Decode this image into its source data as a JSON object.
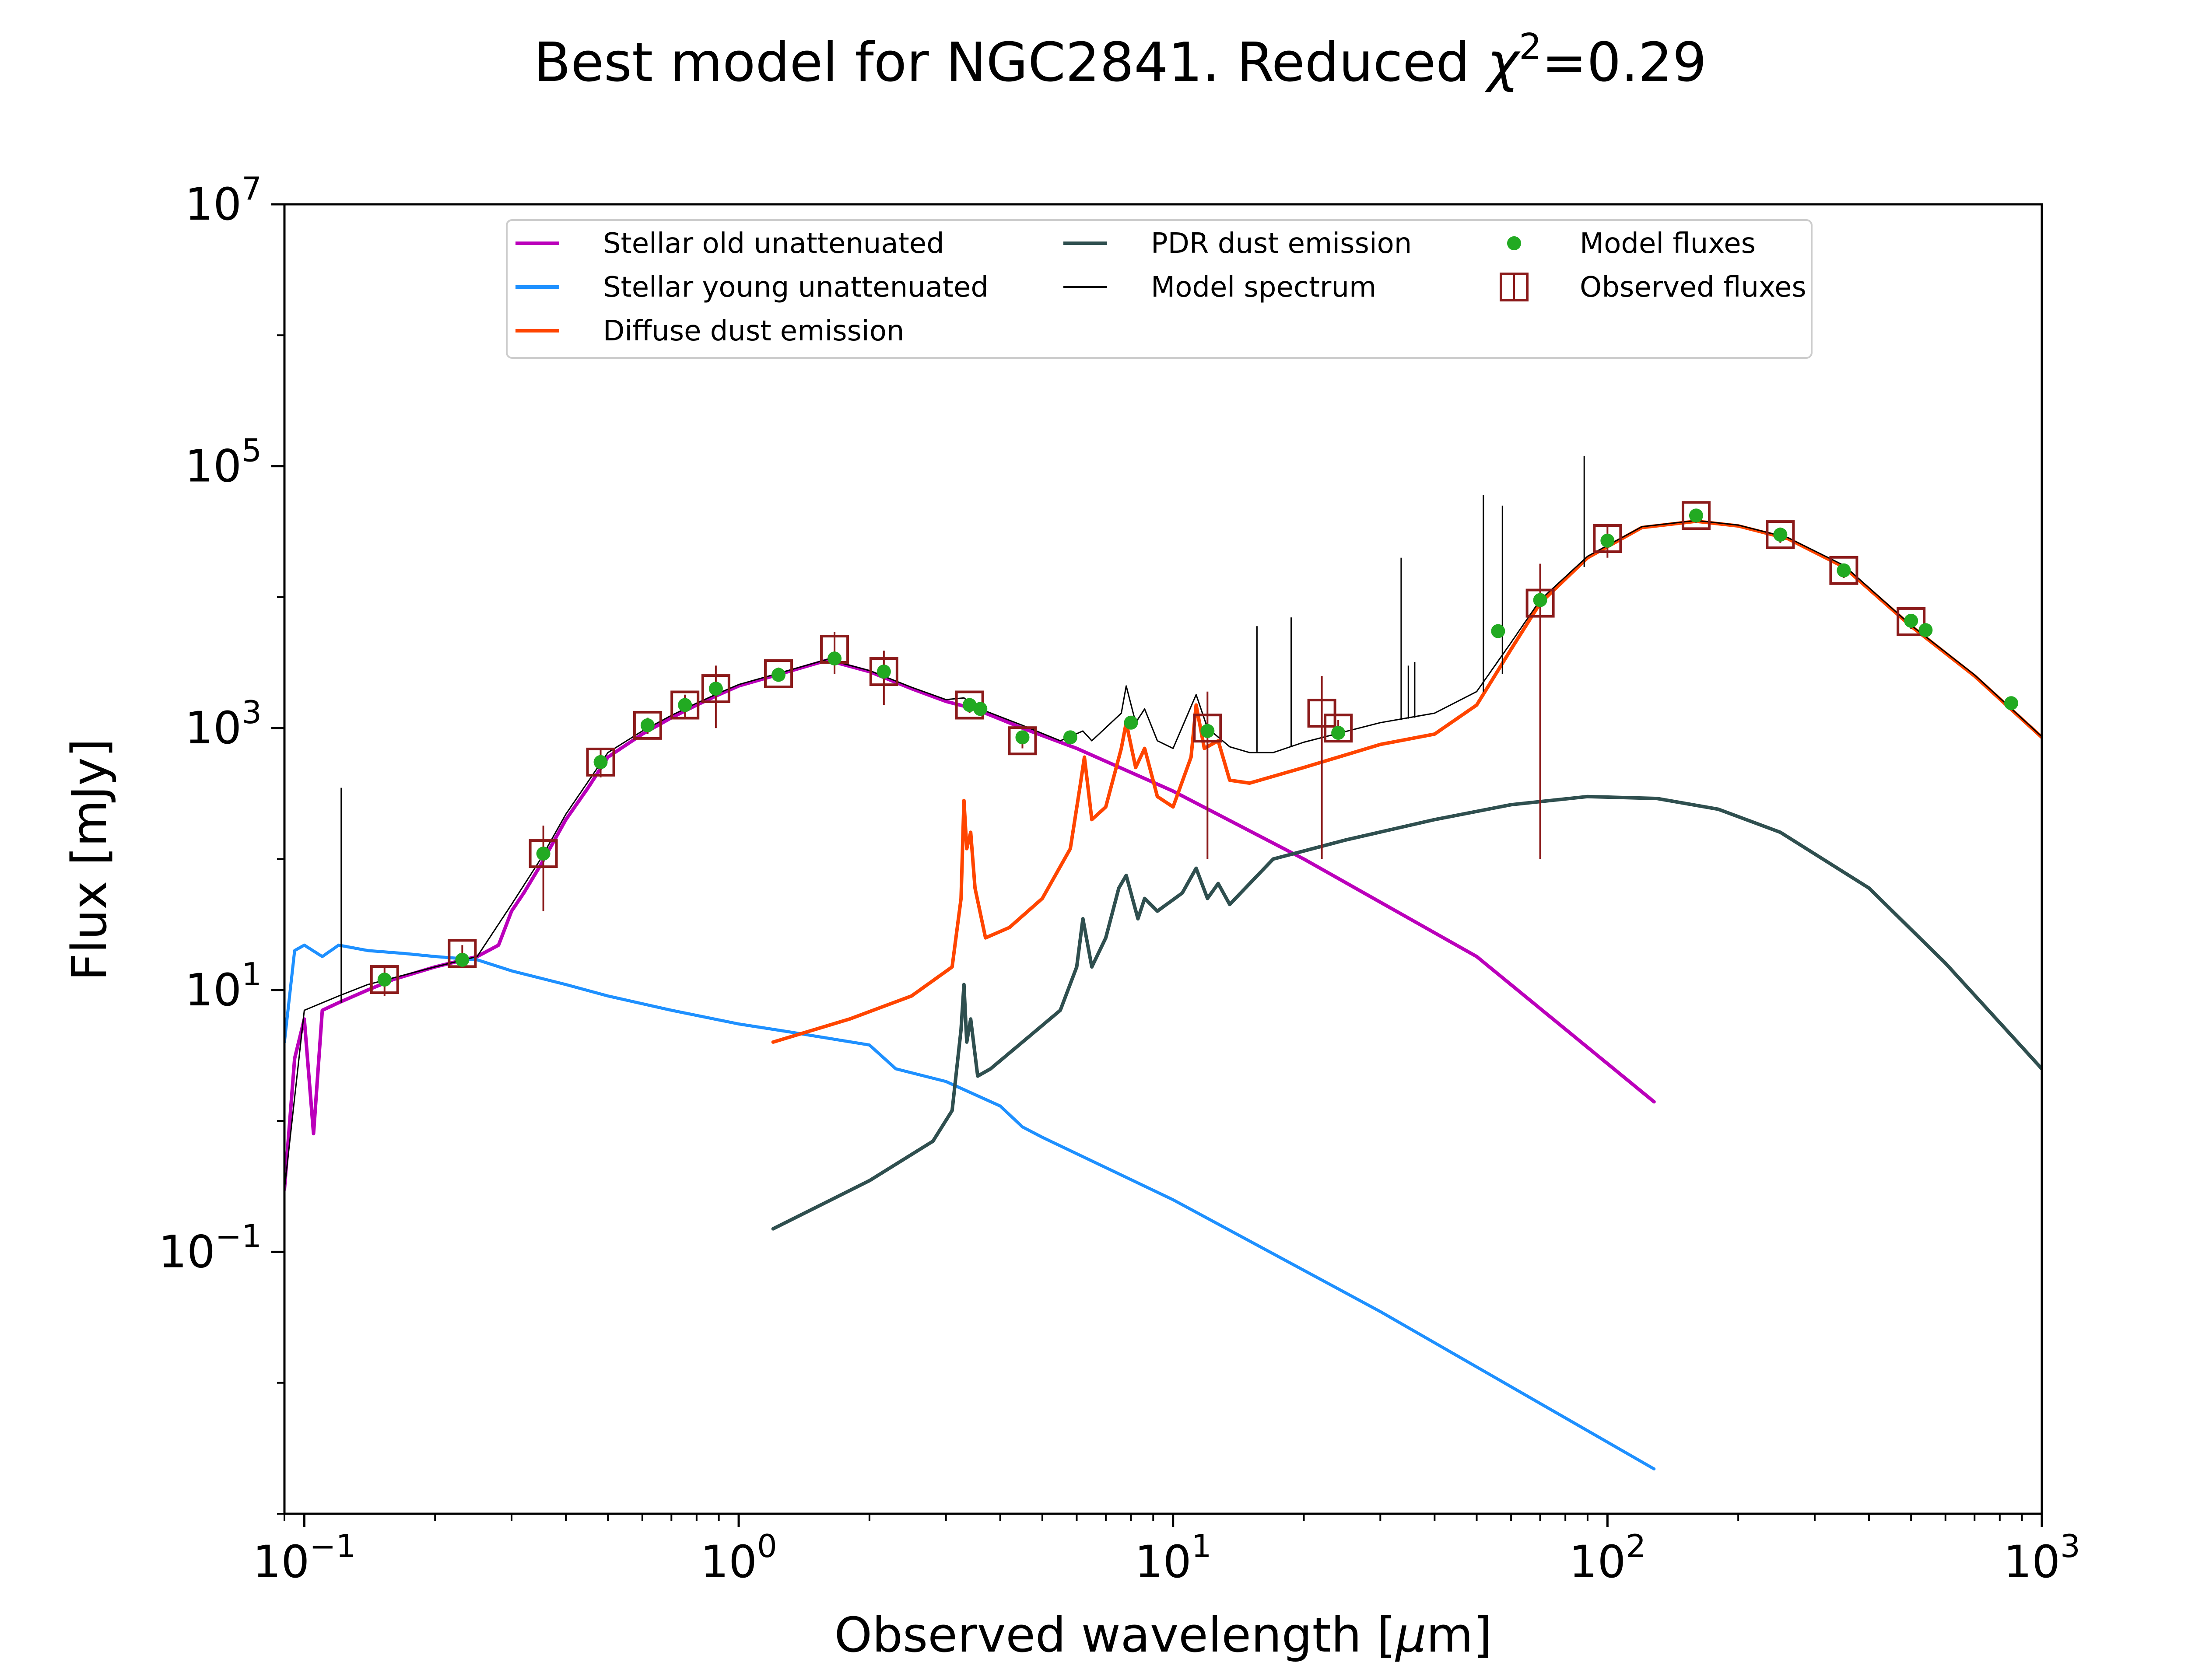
{
  "chart_data": {
    "type": "line",
    "title_prefix": "Best model for NGC2841. Reduced ",
    "title_chi": "χ",
    "title_sup": "2",
    "title_suffix": "=0.29",
    "xlabel_prefix": "Observed wavelength [",
    "xlabel_mu": "μ",
    "xlabel_suffix": "m]",
    "ylabel": "Flux [mJy]",
    "x_scale": "log",
    "y_scale": "log",
    "xlim": [
      0.09,
      1000
    ],
    "ylim": [
      0.001,
      10000000
    ],
    "x_ticks": [
      {
        "value": 0.1,
        "base": "10",
        "exp": "−1"
      },
      {
        "value": 1,
        "base": "10",
        "exp": "0"
      },
      {
        "value": 10,
        "base": "10",
        "exp": "1"
      },
      {
        "value": 100,
        "base": "10",
        "exp": "2"
      },
      {
        "value": 1000,
        "base": "10",
        "exp": "3"
      }
    ],
    "y_ticks": [
      {
        "value": 0.1,
        "base": "10",
        "exp": "−1"
      },
      {
        "value": 10,
        "base": "10",
        "exp": "1"
      },
      {
        "value": 1000,
        "base": "10",
        "exp": "3"
      },
      {
        "value": 100000,
        "base": "10",
        "exp": "5"
      },
      {
        "value": 10000000,
        "base": "10",
        "exp": "7"
      }
    ],
    "legend_position": "top-center",
    "legend": [
      {
        "key": "old",
        "label": "Stellar old unattenuated",
        "kind": "line",
        "color": "#bb00bb"
      },
      {
        "key": "young",
        "label": "Stellar young unattenuated",
        "kind": "line",
        "color": "#1e90ff"
      },
      {
        "key": "diffuse",
        "label": "Diffuse dust emission",
        "kind": "line",
        "color": "#ff4500"
      },
      {
        "key": "pdr",
        "label": "PDR dust emission",
        "kind": "line",
        "color": "#2f4f4f"
      },
      {
        "key": "model",
        "label": "Model spectrum",
        "kind": "line",
        "color": "#000000"
      },
      {
        "key": "model_fluxes",
        "label": "Model fluxes",
        "kind": "dot",
        "color": "#22aa22"
      },
      {
        "key": "observed",
        "label": "Observed fluxes",
        "kind": "box",
        "color": "#8b1a1a"
      }
    ],
    "series": [
      {
        "name": "Stellar old unattenuated",
        "color": "#bb00bb",
        "width": 8,
        "points": [
          [
            0.09,
            0.3
          ],
          [
            0.095,
            3
          ],
          [
            0.1,
            6
          ],
          [
            0.105,
            0.8
          ],
          [
            0.11,
            7
          ],
          [
            0.12,
            8
          ],
          [
            0.14,
            10
          ],
          [
            0.16,
            12
          ],
          [
            0.2,
            15
          ],
          [
            0.25,
            18
          ],
          [
            0.28,
            22
          ],
          [
            0.3,
            40
          ],
          [
            0.32,
            55
          ],
          [
            0.35,
            90
          ],
          [
            0.4,
            200
          ],
          [
            0.45,
            350
          ],
          [
            0.5,
            600
          ],
          [
            0.6,
            900
          ],
          [
            0.7,
            1200
          ],
          [
            0.8,
            1500
          ],
          [
            0.9,
            1800
          ],
          [
            1.0,
            2100
          ],
          [
            1.2,
            2500
          ],
          [
            1.6,
            3300
          ],
          [
            2.0,
            2700
          ],
          [
            2.5,
            2000
          ],
          [
            3.0,
            1600
          ],
          [
            3.5,
            1400
          ],
          [
            4.5,
            1000
          ],
          [
            6.0,
            700
          ],
          [
            10,
            330
          ],
          [
            20,
            100
          ],
          [
            50,
            18
          ],
          [
            128,
            1.4
          ]
        ]
      },
      {
        "name": "Stellar young unattenuated",
        "color": "#1e90ff",
        "width": 7,
        "points": [
          [
            0.09,
            4
          ],
          [
            0.095,
            20
          ],
          [
            0.1,
            22
          ],
          [
            0.11,
            18
          ],
          [
            0.12,
            22
          ],
          [
            0.14,
            20
          ],
          [
            0.17,
            19
          ],
          [
            0.2,
            18
          ],
          [
            0.25,
            17
          ],
          [
            0.3,
            14
          ],
          [
            0.4,
            11
          ],
          [
            0.5,
            9
          ],
          [
            0.7,
            7
          ],
          [
            1.0,
            5.5
          ],
          [
            1.3,
            4.8
          ],
          [
            2.0,
            3.8
          ],
          [
            2.3,
            2.5
          ],
          [
            3.0,
            2.0
          ],
          [
            4.0,
            1.3
          ],
          [
            4.5,
            0.9
          ],
          [
            5.0,
            0.75
          ],
          [
            10,
            0.25
          ],
          [
            30,
            0.035
          ],
          [
            128,
            0.0022
          ]
        ]
      },
      {
        "name": "Diffuse dust emission",
        "color": "#ff4500",
        "width": 8,
        "points": [
          [
            1.2,
            4
          ],
          [
            1.8,
            6
          ],
          [
            2.5,
            9
          ],
          [
            3.1,
            15
          ],
          [
            3.25,
            50
          ],
          [
            3.3,
            280
          ],
          [
            3.35,
            120
          ],
          [
            3.42,
            160
          ],
          [
            3.5,
            60
          ],
          [
            3.7,
            25
          ],
          [
            4.2,
            30
          ],
          [
            5.0,
            50
          ],
          [
            5.8,
            120
          ],
          [
            6.1,
            350
          ],
          [
            6.25,
            600
          ],
          [
            6.5,
            200
          ],
          [
            7.0,
            250
          ],
          [
            7.6,
            700
          ],
          [
            7.8,
            1100
          ],
          [
            8.2,
            500
          ],
          [
            8.6,
            700
          ],
          [
            9.2,
            300
          ],
          [
            10,
            250
          ],
          [
            11.0,
            600
          ],
          [
            11.3,
            1500
          ],
          [
            11.8,
            700
          ],
          [
            12.7,
            800
          ],
          [
            13.5,
            400
          ],
          [
            15,
            380
          ],
          [
            20,
            500
          ],
          [
            30,
            750
          ],
          [
            40,
            900
          ],
          [
            50,
            1500
          ],
          [
            60,
            4000
          ],
          [
            70,
            9000
          ],
          [
            90,
            20000
          ],
          [
            120,
            34000
          ],
          [
            160,
            38000
          ],
          [
            200,
            35000
          ],
          [
            260,
            28000
          ],
          [
            350,
            17000
          ],
          [
            500,
            6000
          ],
          [
            700,
            2500
          ],
          [
            1000,
            850
          ]
        ]
      },
      {
        "name": "PDR dust emission",
        "color": "#2f4f4f",
        "width": 8,
        "points": [
          [
            1.2,
            0.15
          ],
          [
            2.0,
            0.35
          ],
          [
            2.8,
            0.7
          ],
          [
            3.1,
            1.2
          ],
          [
            3.25,
            5
          ],
          [
            3.3,
            11
          ],
          [
            3.35,
            4
          ],
          [
            3.42,
            6
          ],
          [
            3.55,
            2.2
          ],
          [
            3.8,
            2.5
          ],
          [
            4.5,
            4
          ],
          [
            5.5,
            7
          ],
          [
            6.0,
            15
          ],
          [
            6.2,
            35
          ],
          [
            6.5,
            15
          ],
          [
            7.0,
            25
          ],
          [
            7.5,
            60
          ],
          [
            7.8,
            75
          ],
          [
            8.3,
            35
          ],
          [
            8.6,
            50
          ],
          [
            9.2,
            40
          ],
          [
            10.5,
            55
          ],
          [
            11.3,
            85
          ],
          [
            12,
            50
          ],
          [
            12.7,
            65
          ],
          [
            13.5,
            45
          ],
          [
            17,
            100
          ],
          [
            25,
            140
          ],
          [
            40,
            200
          ],
          [
            60,
            260
          ],
          [
            90,
            300
          ],
          [
            130,
            290
          ],
          [
            180,
            240
          ],
          [
            250,
            160
          ],
          [
            400,
            60
          ],
          [
            600,
            16
          ],
          [
            1000,
            2.5
          ]
        ]
      },
      {
        "name": "Model spectrum",
        "color": "#000000",
        "width": 3,
        "points": [
          [
            0.09,
            0.3
          ],
          [
            0.1,
            7
          ],
          [
            0.12,
            9
          ],
          [
            0.14,
            11
          ],
          [
            0.2,
            15
          ],
          [
            0.25,
            18
          ],
          [
            0.3,
            45
          ],
          [
            0.35,
            100
          ],
          [
            0.4,
            220
          ],
          [
            0.5,
            650
          ],
          [
            0.6,
            950
          ],
          [
            0.7,
            1250
          ],
          [
            0.8,
            1550
          ],
          [
            0.9,
            1850
          ],
          [
            1.0,
            2150
          ],
          [
            1.2,
            2550
          ],
          [
            1.6,
            3350
          ],
          [
            2.0,
            2750
          ],
          [
            2.5,
            2050
          ],
          [
            3.0,
            1650
          ],
          [
            3.3,
            1700
          ],
          [
            3.5,
            1450
          ],
          [
            4.5,
            1050
          ],
          [
            5.5,
            800
          ],
          [
            6.2,
            950
          ],
          [
            6.5,
            800
          ],
          [
            7.6,
            1300
          ],
          [
            7.8,
            2100
          ],
          [
            8.2,
            1100
          ],
          [
            8.6,
            1400
          ],
          [
            9.2,
            800
          ],
          [
            10,
            700
          ],
          [
            11.3,
            1800
          ],
          [
            12,
            1000
          ],
          [
            13.5,
            720
          ],
          [
            15,
            650
          ],
          [
            17,
            650
          ],
          [
            20,
            780
          ],
          [
            30,
            1100
          ],
          [
            40,
            1300
          ],
          [
            50,
            1900
          ],
          [
            60,
            4500
          ],
          [
            70,
            9500
          ],
          [
            90,
            20500
          ],
          [
            120,
            34500
          ],
          [
            160,
            38500
          ],
          [
            200,
            35500
          ],
          [
            260,
            28500
          ],
          [
            350,
            17500
          ],
          [
            500,
            6100
          ],
          [
            700,
            2550
          ],
          [
            1000,
            860
          ]
        ]
      }
    ],
    "emission_lines": [
      {
        "x": 0.1216,
        "y_base": 8,
        "y_top": 350
      },
      {
        "x": 15.6,
        "y_base": 660,
        "y_top": 6000
      },
      {
        "x": 18.7,
        "y_base": 720,
        "y_top": 7000
      },
      {
        "x": 33.5,
        "y_base": 1150,
        "y_top": 20000
      },
      {
        "x": 34.8,
        "y_base": 1180,
        "y_top": 3000
      },
      {
        "x": 36.0,
        "y_base": 1200,
        "y_top": 3200
      },
      {
        "x": 51.8,
        "y_base": 1900,
        "y_top": 60000
      },
      {
        "x": 57.3,
        "y_base": 2600,
        "y_top": 50000
      },
      {
        "x": 88.4,
        "y_base": 17000,
        "y_top": 120000
      }
    ],
    "model_fluxes": [
      [
        0.153,
        12
      ],
      [
        0.231,
        17
      ],
      [
        0.355,
        110
      ],
      [
        0.481,
        550
      ],
      [
        0.617,
        1050
      ],
      [
        0.752,
        1500
      ],
      [
        0.886,
        2000
      ],
      [
        1.235,
        2550
      ],
      [
        1.662,
        3400
      ],
      [
        2.159,
        2700
      ],
      [
        3.4,
        1500
      ],
      [
        3.6,
        1400
      ],
      [
        4.5,
        850
      ],
      [
        5.8,
        850
      ],
      [
        8.0,
        1100
      ],
      [
        12,
        950
      ],
      [
        24,
        920
      ],
      [
        56,
        5500
      ],
      [
        70,
        9500
      ],
      [
        100,
        27000
      ],
      [
        160,
        42000
      ],
      [
        250,
        30000
      ],
      [
        350,
        16000
      ],
      [
        500,
        6600
      ],
      [
        540,
        5600
      ],
      [
        850,
        1550
      ]
    ],
    "observed_fluxes": [
      {
        "x": 0.153,
        "y": 12,
        "lo": 9,
        "hi": 15
      },
      {
        "x": 0.231,
        "y": 19,
        "lo": 16,
        "hi": 22
      },
      {
        "x": 0.355,
        "y": 110,
        "lo": 40,
        "hi": 180
      },
      {
        "x": 0.481,
        "y": 550,
        "lo": 420,
        "hi": 700
      },
      {
        "x": 0.617,
        "y": 1050,
        "lo": 900,
        "hi": 1200
      },
      {
        "x": 0.752,
        "y": 1500,
        "lo": 1200,
        "hi": 1800
      },
      {
        "x": 0.886,
        "y": 2000,
        "lo": 1000,
        "hi": 3000
      },
      {
        "x": 1.235,
        "y": 2600,
        "lo": 2300,
        "hi": 2900
      },
      {
        "x": 1.662,
        "y": 4000,
        "lo": 2600,
        "hi": 5400
      },
      {
        "x": 2.159,
        "y": 2700,
        "lo": 1500,
        "hi": 3900
      },
      {
        "x": 3.4,
        "y": 1500,
        "lo": 1300,
        "hi": 1700
      },
      {
        "x": 4.5,
        "y": 800,
        "lo": 700,
        "hi": 900
      },
      {
        "x": 12,
        "y": 1000,
        "lo": 100,
        "hi": 1900
      },
      {
        "x": 22,
        "y": 1300,
        "lo": 100,
        "hi": 2500
      },
      {
        "x": 24,
        "y": 1000,
        "lo": 850,
        "hi": 1150
      },
      {
        "x": 70,
        "y": 9000,
        "lo": 100,
        "hi": 18000
      },
      {
        "x": 100,
        "y": 28000,
        "lo": 20000,
        "hi": 36000
      },
      {
        "x": 160,
        "y": 42000,
        "lo": 37000,
        "hi": 47000
      },
      {
        "x": 250,
        "y": 30000,
        "lo": 26000,
        "hi": 34000
      },
      {
        "x": 350,
        "y": 16000,
        "lo": 14000,
        "hi": 18000
      },
      {
        "x": 500,
        "y": 6500,
        "lo": 5700,
        "hi": 7300
      }
    ]
  }
}
